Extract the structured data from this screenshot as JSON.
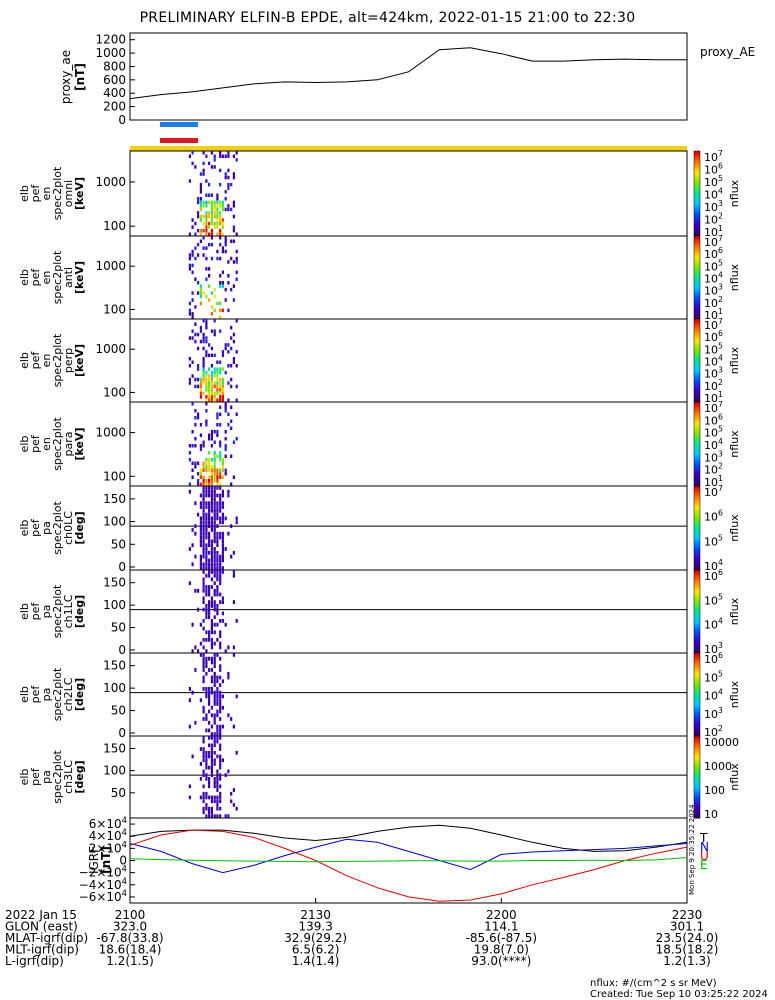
{
  "title": "PRELIMINARY ELFIN-B EPDE, alt=424km, 2022-01-15 21:00 to 22:30",
  "colors": {
    "blue_bar": "#1a7cf0",
    "red_bar": "#e0141e",
    "yellow_bar": "#f5d000",
    "bx": "#0000e0",
    "by": "#e00000",
    "bz": "#00c000",
    "btot": "#000000"
  },
  "chart_data": [
    {
      "type": "line",
      "panel": "proxy_ae",
      "ylabel": "proxy_ae\n[nT]",
      "legend": "proxy_AE",
      "yticks": [
        1200,
        1000,
        800,
        600,
        400,
        200,
        0
      ],
      "ylim": [
        0,
        1300
      ],
      "x_minutes": [
        0,
        5,
        10,
        15,
        20,
        25,
        30,
        35,
        40,
        45,
        50,
        55,
        60,
        65,
        70,
        75,
        80,
        85,
        90
      ],
      "values": [
        320,
        380,
        420,
        480,
        540,
        570,
        560,
        570,
        600,
        720,
        1050,
        1080,
        990,
        880,
        880,
        900,
        910,
        900,
        900
      ]
    },
    {
      "type": "heatmap",
      "panel": "omni",
      "ylabel": [
        "elb",
        "pef",
        "en",
        "spec2plot",
        "omni",
        "[keV]"
      ],
      "yticks": [
        "1000",
        "100"
      ],
      "cbar_ticks": [
        "10^7",
        "10^6",
        "10^5",
        "10^4",
        "10^3",
        "10^2",
        "10^1"
      ],
      "cbar_label": "nflux"
    },
    {
      "type": "heatmap",
      "panel": "anti",
      "ylabel": [
        "elb",
        "pef",
        "en",
        "spec2plot",
        "anti",
        "[keV]"
      ],
      "yticks": [
        "1000",
        "100"
      ],
      "cbar_ticks": [
        "10^7",
        "10^6",
        "10^5",
        "10^4",
        "10^3",
        "10^2",
        "10^1"
      ],
      "cbar_label": "nflux"
    },
    {
      "type": "heatmap",
      "panel": "perp",
      "ylabel": [
        "elb",
        "pef",
        "en",
        "spec2plot",
        "perp",
        "[keV]"
      ],
      "yticks": [
        "1000",
        "100"
      ],
      "cbar_ticks": [
        "10^7",
        "10^6",
        "10^5",
        "10^4",
        "10^3",
        "10^2",
        "10^1"
      ],
      "cbar_label": "nflux"
    },
    {
      "type": "heatmap",
      "panel": "para",
      "ylabel": [
        "elb",
        "pef",
        "en",
        "spec2plot",
        "para",
        "[keV]"
      ],
      "yticks": [
        "1000",
        "100"
      ],
      "cbar_ticks": [
        "10^7",
        "10^6",
        "10^5",
        "10^4",
        "10^3",
        "10^2",
        "10^1"
      ],
      "cbar_label": "nflux"
    },
    {
      "type": "heatmap",
      "panel": "ch0LC",
      "ylabel": [
        "elb",
        "pef",
        "pa",
        "spec2plot",
        "ch0LC",
        "[deg]"
      ],
      "yticks": [
        "150",
        "100",
        "50",
        "0"
      ],
      "cbar_ticks": [
        "10^7",
        "10^6",
        "10^5",
        "10^4"
      ],
      "cbar_label": "nflux"
    },
    {
      "type": "heatmap",
      "panel": "ch1LC",
      "ylabel": [
        "elb",
        "pef",
        "pa",
        "spec2plot",
        "ch1LC",
        "[deg]"
      ],
      "yticks": [
        "150",
        "100",
        "50",
        "0"
      ],
      "cbar_ticks": [
        "10^6",
        "10^5",
        "10^4",
        "10^3"
      ],
      "cbar_label": "nflux"
    },
    {
      "type": "heatmap",
      "panel": "ch2LC",
      "ylabel": [
        "elb",
        "pef",
        "pa",
        "spec2plot",
        "ch2LC",
        "[deg]"
      ],
      "yticks": [
        "150",
        "100",
        "50",
        "0"
      ],
      "cbar_ticks": [
        "10^6",
        "10^5",
        "10^4",
        "10^3",
        "10^2"
      ],
      "cbar_label": "nflux"
    },
    {
      "type": "heatmap",
      "panel": "ch3LC",
      "ylabel": [
        "elb",
        "pef",
        "pa",
        "spec2plot",
        "ch3LC",
        "[deg]"
      ],
      "yticks": [
        "150",
        "100",
        "50"
      ],
      "cbar_ticks": [
        "10000",
        "1000",
        "100",
        "10"
      ],
      "cbar_label": "nflux"
    },
    {
      "type": "line",
      "panel": "IGRF",
      "ylabel": "IGRF\n[nT]",
      "yticks": [
        "6×10^4",
        "4×10^4",
        "2×10^4",
        "0",
        "−2×10^4",
        "−4×10^4",
        "−6×10^4"
      ],
      "ylim": [
        -70000,
        70000
      ],
      "legend": [
        "T",
        "N",
        "U",
        "E"
      ],
      "x_minutes": [
        0,
        5,
        10,
        15,
        20,
        25,
        30,
        35,
        40,
        45,
        50,
        55,
        60,
        65,
        70,
        75,
        80,
        85,
        90
      ],
      "series": [
        {
          "name": "T",
          "color": "#000000",
          "values": [
            40000,
            48000,
            50000,
            50000,
            45000,
            37000,
            33000,
            38000,
            48000,
            55000,
            58000,
            53000,
            42000,
            30000,
            20000,
            15000,
            16000,
            22000,
            30000
          ]
        },
        {
          "name": "N",
          "color": "#0000e0",
          "values": [
            28000,
            15000,
            -5000,
            -20000,
            -8000,
            8000,
            22000,
            35000,
            30000,
            15000,
            0,
            -15000,
            10000,
            14000,
            16000,
            18000,
            20000,
            24000,
            28000
          ]
        },
        {
          "name": "U",
          "color": "#e00000",
          "values": [
            25000,
            42000,
            50000,
            48000,
            38000,
            20000,
            0,
            -25000,
            -45000,
            -60000,
            -67000,
            -65000,
            -55000,
            -40000,
            -28000,
            -15000,
            0,
            12000,
            22000
          ]
        },
        {
          "name": "E",
          "color": "#00c000",
          "values": [
            3000,
            1500,
            500,
            -500,
            -1000,
            -1500,
            -2000,
            -1500,
            -1000,
            -500,
            -500,
            -1000,
            -1000,
            0,
            0,
            500,
            0,
            1000,
            5000
          ]
        }
      ]
    }
  ],
  "xaxis": {
    "rows": [
      {
        "label": "2022 Jan 15",
        "vals": [
          "2100",
          "2130",
          "2200",
          "2230"
        ]
      },
      {
        "label": "GLON (east)",
        "vals": [
          "323.0",
          "139.3",
          "114.1",
          "301.1"
        ]
      },
      {
        "label": "MLAT-igrf(dip)",
        "vals": [
          "-67.8(33.8)",
          "32.9(29.2)",
          "-85.6(-87.5)",
          "23.5(24.0)"
        ]
      },
      {
        "label": "MLT-igrf(dip)",
        "vals": [
          "18.6(18.4)",
          "6.5(6.2)",
          "19.8(7.0)",
          "18.5(18.2)"
        ]
      },
      {
        "label": "L-igrf(dip)",
        "vals": [
          "1.2(1.5)",
          "1.4(1.4)",
          "93.0(****)",
          "1.2(1.3)"
        ]
      }
    ]
  },
  "footer": {
    "units": "nflux: #/(cm^2 s sr MeV)",
    "created": "Created: Tue Sep 10 03:25:22 2024",
    "side_stamp": "Mon Sep 9 20:35:22 2024"
  }
}
